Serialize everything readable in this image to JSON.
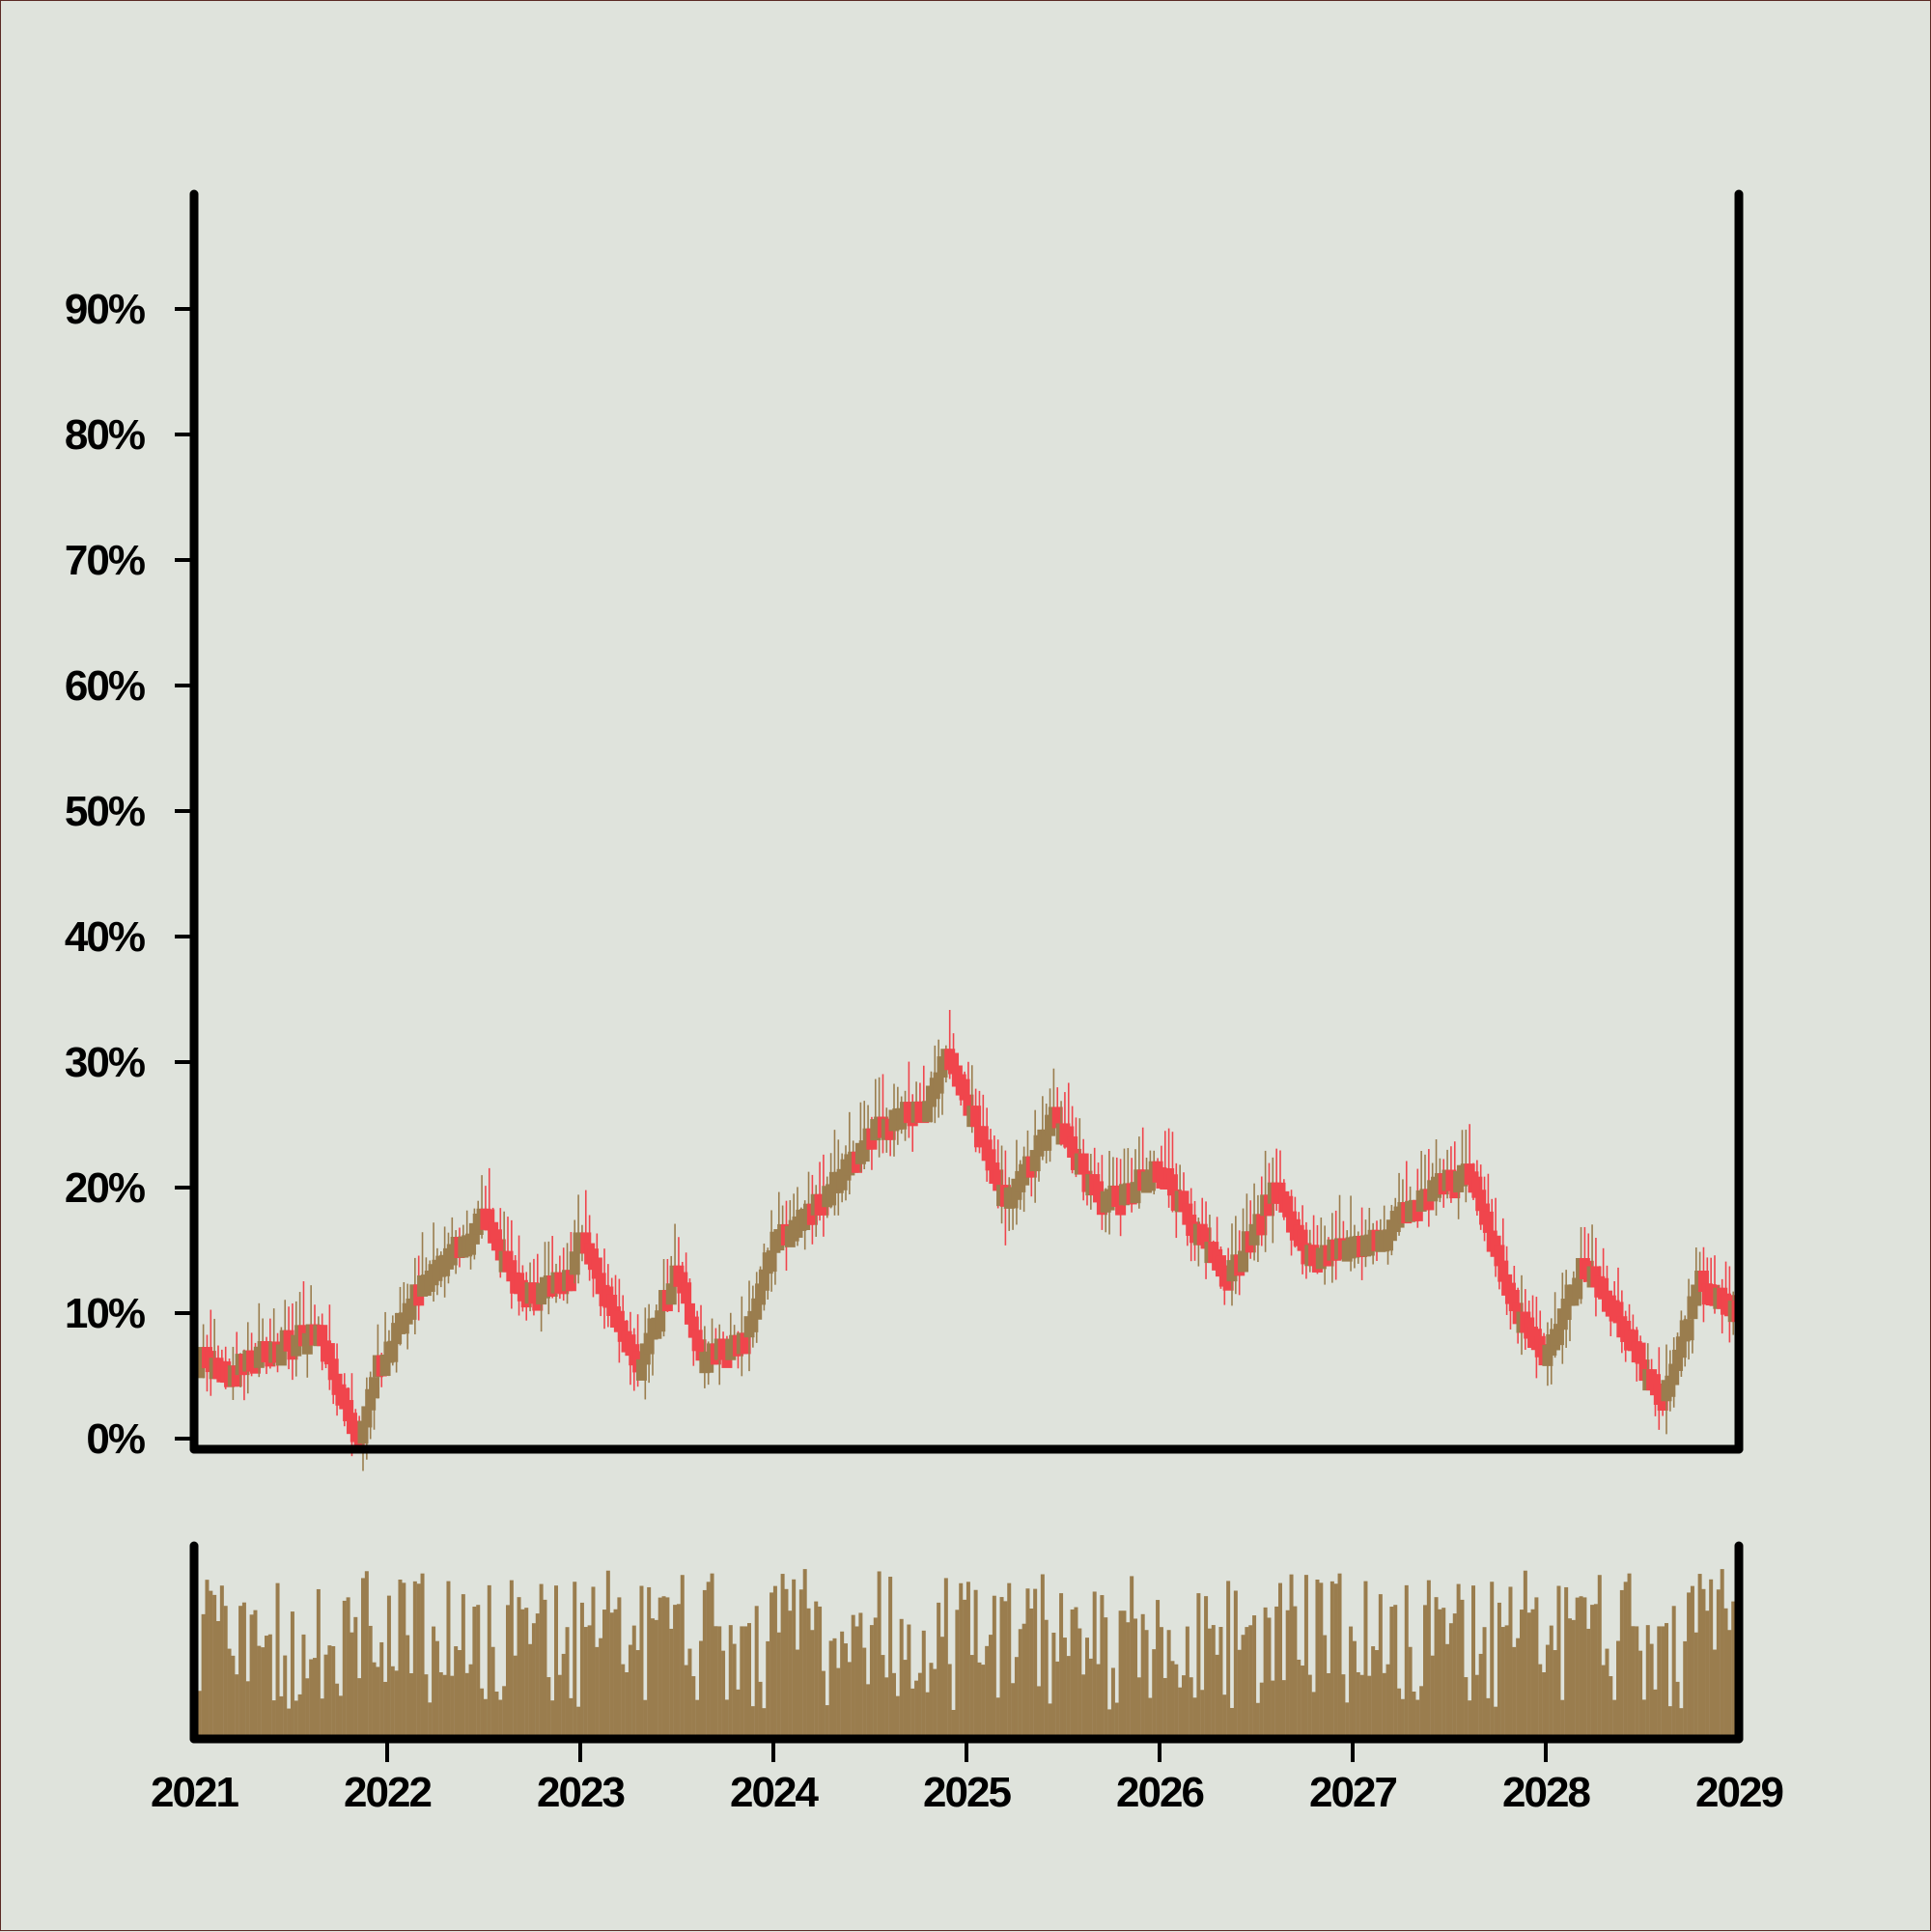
{
  "chart_data": {
    "type": "candlestick",
    "title": "",
    "xlabel": "",
    "ylabel": "",
    "x_range": [
      2021.0,
      2029.0
    ],
    "y_range": [
      0,
      100
    ],
    "y_ticks": [
      0,
      10,
      20,
      30,
      40,
      50,
      60,
      70,
      80,
      90
    ],
    "y_tick_labels": [
      "0%",
      "10%",
      "20%",
      "30%",
      "40%",
      "50%",
      "60%",
      "70%",
      "80%",
      "90%"
    ],
    "x_ticks": [
      2021,
      2022,
      2023,
      2024,
      2025,
      2026,
      2027,
      2028,
      2029
    ],
    "x_tick_labels": [
      "2021",
      "2022",
      "2023",
      "2024",
      "2025",
      "2026",
      "2027",
      "2028",
      "2029"
    ],
    "grid": false,
    "legend": "none",
    "colors": {
      "background": "#dfe3dc",
      "up": "#9a7d4e",
      "down": "#f0454c",
      "axis": "#000000",
      "volume": "#9a7d4e"
    },
    "candle_interval": "weekly",
    "price_path_anchors": [
      {
        "t": 2021.0,
        "v": 7.0
      },
      {
        "t": 2021.2,
        "v": 6.0
      },
      {
        "t": 2021.45,
        "v": 8.0
      },
      {
        "t": 2021.65,
        "v": 9.0
      },
      {
        "t": 2021.85,
        "v": -0.5
      },
      {
        "t": 2021.95,
        "v": 6.0
      },
      {
        "t": 2022.15,
        "v": 12.0
      },
      {
        "t": 2022.5,
        "v": 18.0
      },
      {
        "t": 2022.7,
        "v": 12.0
      },
      {
        "t": 2022.95,
        "v": 13.0
      },
      {
        "t": 2023.0,
        "v": 16.5
      },
      {
        "t": 2023.3,
        "v": 6.0
      },
      {
        "t": 2023.5,
        "v": 14.0
      },
      {
        "t": 2023.62,
        "v": 7.0
      },
      {
        "t": 2023.85,
        "v": 8.0
      },
      {
        "t": 2024.0,
        "v": 16.0
      },
      {
        "t": 2024.2,
        "v": 18.5
      },
      {
        "t": 2024.55,
        "v": 25.5
      },
      {
        "t": 2024.8,
        "v": 27.0
      },
      {
        "t": 2024.9,
        "v": 31.5
      },
      {
        "t": 2025.2,
        "v": 19.0
      },
      {
        "t": 2025.45,
        "v": 26.0
      },
      {
        "t": 2025.7,
        "v": 19.0
      },
      {
        "t": 2026.0,
        "v": 22.0
      },
      {
        "t": 2026.35,
        "v": 13.0
      },
      {
        "t": 2026.6,
        "v": 20.5
      },
      {
        "t": 2026.75,
        "v": 15.0
      },
      {
        "t": 2027.1,
        "v": 16.0
      },
      {
        "t": 2027.45,
        "v": 21.0
      },
      {
        "t": 2027.6,
        "v": 21.5
      },
      {
        "t": 2027.8,
        "v": 12.0
      },
      {
        "t": 2028.0,
        "v": 7.0
      },
      {
        "t": 2028.2,
        "v": 14.5
      },
      {
        "t": 2028.35,
        "v": 11.0
      },
      {
        "t": 2028.6,
        "v": 3.0
      },
      {
        "t": 2028.8,
        "v": 13.0
      },
      {
        "t": 2029.0,
        "v": 10.0
      }
    ],
    "volume": {
      "axis_labels": "none",
      "relative_range": [
        0,
        1
      ]
    }
  }
}
